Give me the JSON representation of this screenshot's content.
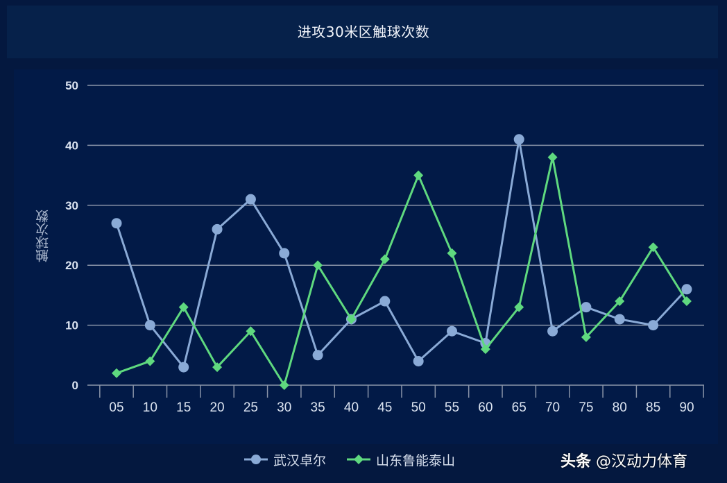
{
  "chart_data": {
    "type": "line",
    "title": "进攻30米区触球次数",
    "xlabel": "",
    "ylabel": "触球次数",
    "ylim": [
      0,
      50
    ],
    "yticks": [
      0,
      10,
      20,
      30,
      40,
      50
    ],
    "grid": true,
    "legend_position": "bottom",
    "categories": [
      "05",
      "10",
      "15",
      "20",
      "25",
      "30",
      "35",
      "40",
      "45",
      "50",
      "55",
      "60",
      "65",
      "70",
      "75",
      "80",
      "85",
      "90"
    ],
    "series": [
      {
        "name": "武汉卓尔",
        "color": "#8aaad6",
        "marker": "circle",
        "values": [
          27,
          10,
          3,
          26,
          31,
          22,
          5,
          11,
          14,
          4,
          9,
          7,
          41,
          9,
          13,
          11,
          10,
          16
        ]
      },
      {
        "name": "山东鲁能泰山",
        "color": "#5fd97f",
        "marker": "diamond",
        "values": [
          2,
          4,
          13,
          3,
          9,
          0,
          20,
          11,
          21,
          35,
          22,
          6,
          13,
          38,
          8,
          14,
          23,
          14
        ]
      }
    ]
  },
  "header": {
    "title": "进攻30米区触球次数"
  },
  "axis": {
    "ylabel": "触球次数"
  },
  "legend": {
    "items": [
      {
        "label": "武汉卓尔"
      },
      {
        "label": "山东鲁能泰山"
      }
    ]
  },
  "watermark": {
    "brand": "头条",
    "handle": "@汉动力体育"
  },
  "colors": {
    "background": "#04183f",
    "grid": "#8a94a8",
    "blue": "#8aaad6",
    "green": "#5fd97f"
  }
}
